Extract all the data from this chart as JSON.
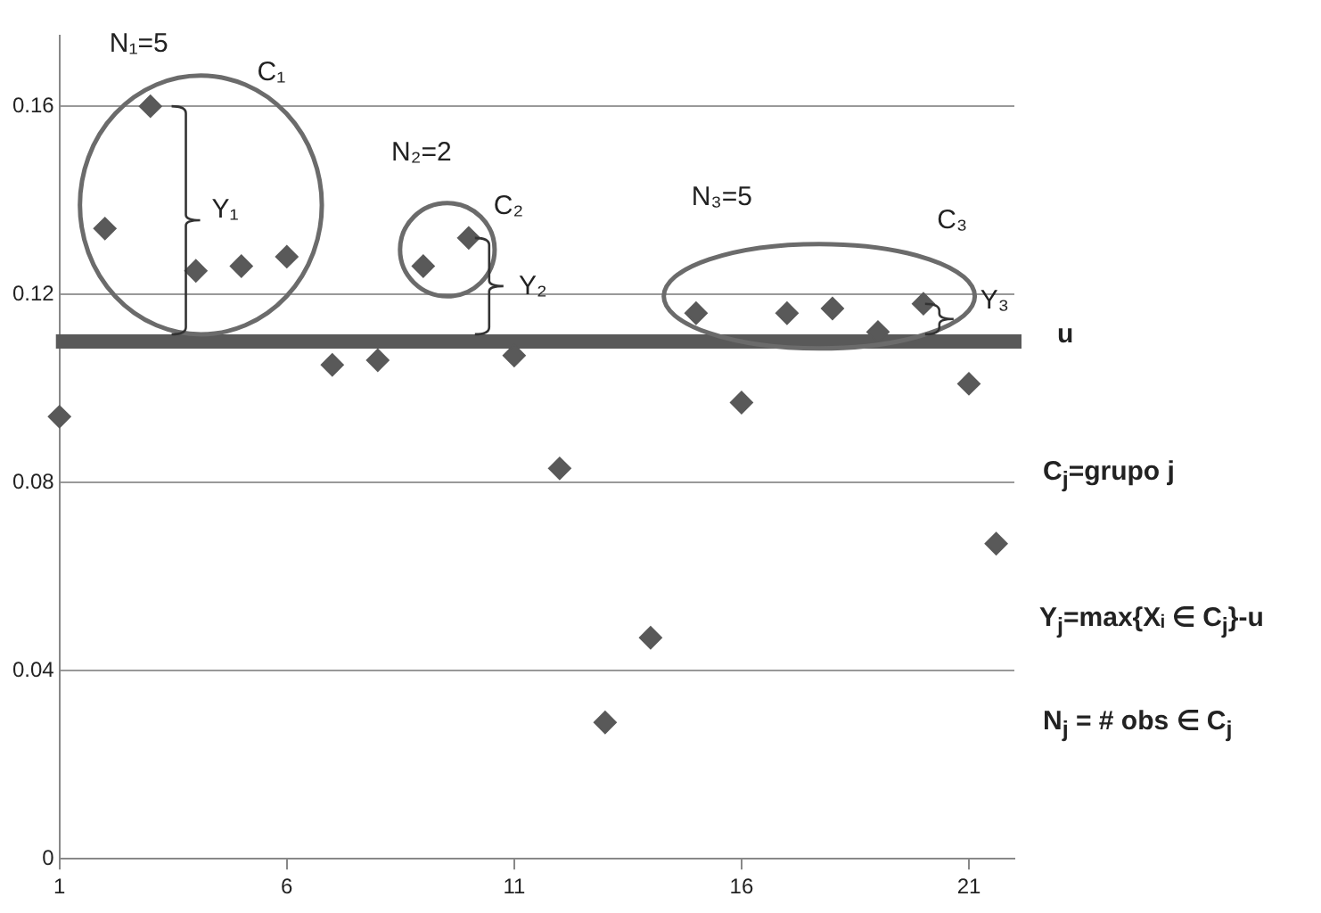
{
  "chart_data": {
    "type": "scatter",
    "x": [
      1,
      2,
      3,
      4,
      5,
      6,
      7,
      8,
      9,
      10,
      11,
      12,
      13,
      14,
      15,
      16,
      17,
      18,
      19,
      20,
      21,
      21.6
    ],
    "values": [
      0.094,
      0.134,
      0.16,
      0.125,
      0.126,
      0.128,
      0.105,
      0.106,
      0.126,
      0.132,
      0.107,
      0.083,
      0.029,
      0.047,
      0.116,
      0.097,
      0.116,
      0.117,
      0.112,
      0.118,
      0.101,
      0.067
    ],
    "color": "#595959",
    "marker": "diamond",
    "grid": "y",
    "legend": false,
    "xlim": [
      1,
      22
    ],
    "xticks": [
      1,
      6,
      11,
      16,
      21
    ],
    "ylim": [
      0,
      0.175
    ],
    "yticks": [
      0,
      0.04,
      0.08,
      0.12,
      0.16
    ],
    "ref_lines": [
      {
        "axis": "y",
        "value": 0.11,
        "label": "u",
        "color": "#595959"
      }
    ],
    "annotations": [
      "N₁=5",
      "C₁",
      "Y₁",
      "N₂=2",
      {
        "text": "C₂",
        "x": 10,
        "y": 0.132
      },
      "Y₂",
      "N₃=5",
      "C₃",
      "Y₃",
      "C$_{j}$=grupo j",
      "Y$_{j}$=max{Xᵢ ∈ C$_{j}$}-u",
      "N$_{j}$ = # obs ∈ C$_{j}$"
    ]
  }
}
